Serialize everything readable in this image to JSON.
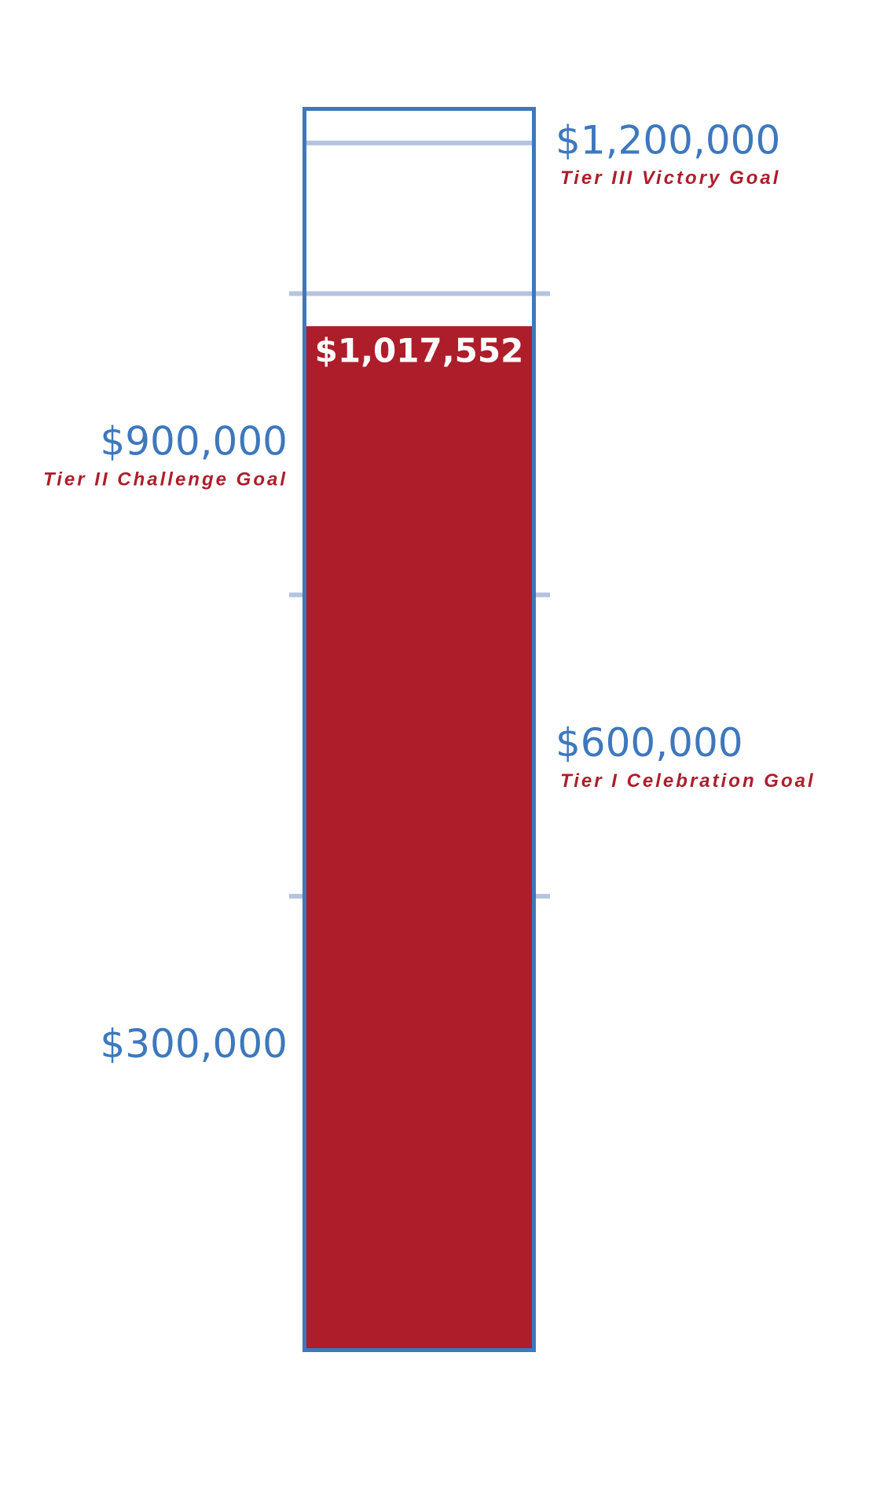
{
  "chart_data": {
    "type": "thermometer",
    "value": 1017552,
    "value_label": "$1,017,552",
    "fill_color": "#ad1e2a",
    "border_color": "#3d78bd",
    "tick_color": "#b4c4e0",
    "ylim": [
      0,
      1232000
    ],
    "yticks": [
      {
        "value": 300000,
        "label": "$300,000"
      },
      {
        "value": 600000,
        "label": "$600,000"
      },
      {
        "value": 900000,
        "label": "$900,000"
      },
      {
        "value": 1200000,
        "label": "$1,200,000"
      }
    ],
    "minor_yticks": [
      450000,
      750000,
      1050000
    ],
    "annotations": [
      {
        "value": 600000,
        "text": "Tier I Celebration Goal"
      },
      {
        "value": 900000,
        "text": "Tier II Challenge Goal"
      },
      {
        "value": 1200000,
        "text": "Tier III Victory Goal"
      }
    ]
  }
}
